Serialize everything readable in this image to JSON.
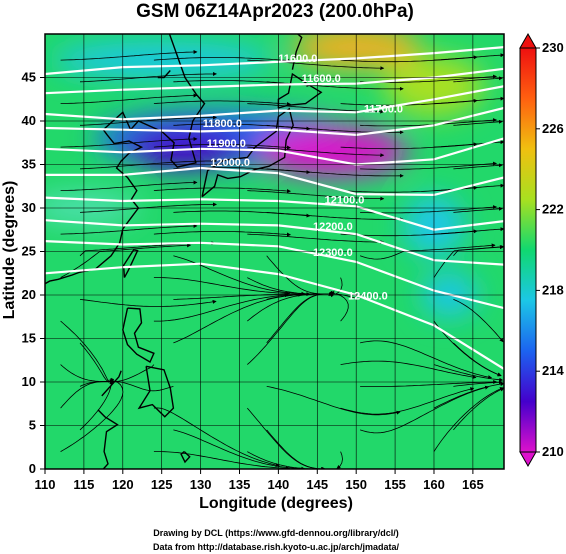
{
  "chart_data": {
    "type": "heatmap",
    "title": "GSM 06Z14Apr2023 (200.0hPa)",
    "xlabel": "Longitude (degrees)",
    "ylabel": "Latitude  (degrees)",
    "xlim": [
      110,
      169
    ],
    "ylim": [
      0,
      50
    ],
    "x_ticks": [
      110,
      115,
      120,
      125,
      130,
      135,
      140,
      145,
      150,
      155,
      160,
      165
    ],
    "y_ticks": [
      0,
      5,
      10,
      15,
      20,
      25,
      30,
      35,
      40,
      45
    ],
    "grid": true,
    "colorbar": {
      "min": 210,
      "max": 230,
      "ticks": [
        210,
        214,
        218,
        222,
        226,
        230
      ],
      "colors": [
        "#dd11cc",
        "#4400cc",
        "#1c63f0",
        "#1cc7e6",
        "#10d870",
        "#a8e020",
        "#f0c010",
        "#ff6010",
        "#ee1010"
      ]
    },
    "contours": [
      {
        "label": "11600.0",
        "lon": 142.5,
        "lat": 46.8
      },
      {
        "label": "11600.0",
        "lon": 145.5,
        "lat": 44.5
      },
      {
        "label": "11700.0",
        "lon": 153.5,
        "lat": 41.0
      },
      {
        "label": "11800.0",
        "lon": 132.8,
        "lat": 39.3
      },
      {
        "label": "11900.0",
        "lon": 133.3,
        "lat": 37.0
      },
      {
        "label": "12000.0",
        "lon": 133.8,
        "lat": 34.8
      },
      {
        "label": "12100.0",
        "lon": 148.5,
        "lat": 30.5
      },
      {
        "label": "12200.0",
        "lon": 147.0,
        "lat": 27.5
      },
      {
        "label": "12300.0",
        "lon": 147.0,
        "lat": 24.5
      },
      {
        "label": "12400.0",
        "lon": 151.5,
        "lat": 19.5
      }
    ],
    "credits": [
      "Drawing by DCL (https://www.gfd-dennou.org/library/dcl/)",
      "Data from http://database.rish.kyoto-u.ac.jp/arch/jmadata/"
    ]
  }
}
